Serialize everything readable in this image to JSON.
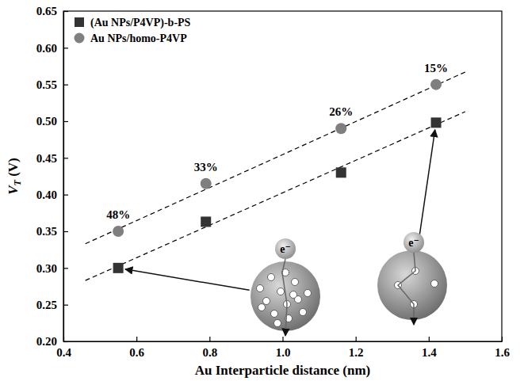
{
  "chart_data": {
    "type": "scatter",
    "x_label": "Au Interparticle distance (nm)",
    "y_label": "VT (V)",
    "x": [
      0.55,
      0.79,
      1.16,
      1.42
    ],
    "series": [
      {
        "name": "(Au NPs/P4VP)-b-PS",
        "color": "#333333",
        "marker": "square",
        "values": [
          0.3,
          0.363,
          0.43,
          0.498
        ]
      },
      {
        "name": "Au NPs/homo-P4VP",
        "color": "#7f7f7f",
        "marker": "circle",
        "values": [
          0.35,
          0.415,
          0.49,
          0.55
        ],
        "point_labels": [
          "48%",
          "33%",
          "26%",
          "15%"
        ]
      },
      {
        "type": "line",
        "line_style": "dashed",
        "color": "#000000",
        "x": [
          0.46,
          1.5
        ],
        "values": [
          0.333,
          0.567
        ]
      },
      {
        "type": "line",
        "line_style": "dashed",
        "color": "#000000",
        "x": [
          0.46,
          1.5
        ],
        "values": [
          0.283,
          0.513
        ]
      }
    ],
    "annotations": [
      "e⁻",
      "e⁻"
    ],
    "xlim": [
      0.4,
      1.6
    ],
    "xticks": [
      0.4,
      0.6,
      0.8,
      {
        "value": 1.0,
        "label": "1.0"
      },
      1.2,
      1.4,
      1.6
    ],
    "ylim": [
      0.2,
      0.65
    ],
    "yticks": [
      {
        "value": 0.2,
        "label": "0.20"
      },
      0.25,
      {
        "value": 0.3,
        "label": "0.30"
      },
      0.35,
      {
        "value": 0.4,
        "label": "0.40"
      },
      0.45,
      {
        "value": 0.5,
        "label": "0.50"
      },
      0.55,
      {
        "value": 0.6,
        "label": "0.60"
      },
      0.65
    ],
    "legend": "upper left",
    "grid": false
  }
}
